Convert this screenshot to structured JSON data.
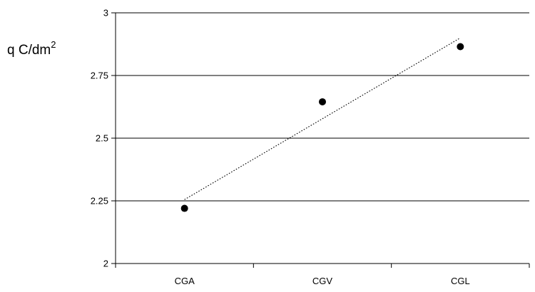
{
  "chart_data": {
    "type": "scatter",
    "title": "",
    "xlabel": "",
    "ylabel": {
      "text": "q C/dm",
      "superscript": "2"
    },
    "categories": [
      "CGA",
      "CGV",
      "CGL"
    ],
    "series": [
      {
        "values": [
          2.22,
          2.645,
          2.865
        ],
        "marker": "circle",
        "color": "#000000"
      }
    ],
    "trendline": {
      "type": "linear",
      "style": "dotted",
      "color": "#000000",
      "start": {
        "x": "CGA",
        "y": 2.255
      },
      "end": {
        "x": "CGL",
        "y": 2.9
      }
    },
    "ylim": [
      2,
      3
    ],
    "yticks": [
      2,
      2.25,
      2.5,
      2.75,
      3
    ],
    "ytick_labels": [
      "2",
      "2.25",
      "2.5",
      "2.75",
      "3"
    ],
    "grid": "horizontal",
    "legend": "none"
  }
}
